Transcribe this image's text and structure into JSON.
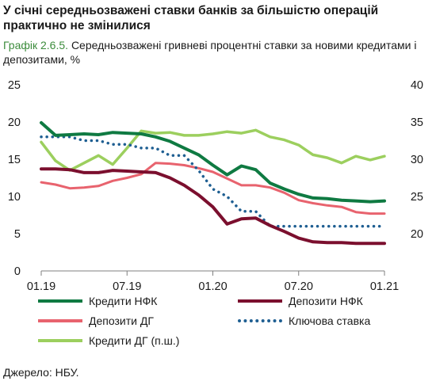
{
  "headline": "У січні середньозважені ставки банків за більшістю операцій практично не змінилися",
  "subtitle_label": "Графік 2.6.5.",
  "subtitle_text": "Середньозважені гривневі процентні ставки за новими кредитами і депозитами, %",
  "source": "Джерело: НБУ.",
  "chart_data": {
    "type": "line",
    "categories": [
      "01.19",
      "02.19",
      "03.19",
      "04.19",
      "05.19",
      "06.19",
      "07.19",
      "08.19",
      "09.19",
      "10.19",
      "11.19",
      "12.19",
      "01.20",
      "02.20",
      "03.20",
      "04.20",
      "05.20",
      "06.20",
      "07.20",
      "08.20",
      "09.20",
      "10.20",
      "11.20",
      "12.20",
      "01.21"
    ],
    "x_tick_labels": [
      "01.19",
      "07.19",
      "01.20",
      "07.20",
      "01.21"
    ],
    "x_tick_index": [
      0,
      6,
      12,
      18,
      24
    ],
    "ylim_left": [
      0,
      25
    ],
    "yticks_left": [
      0,
      5,
      10,
      15,
      20,
      25
    ],
    "ylim_right": [
      15,
      40
    ],
    "yticks_right": [
      20,
      25,
      30,
      35,
      40
    ],
    "grid": false,
    "legend_position": "bottom",
    "series": [
      {
        "name": "Кредити НФК",
        "axis": "left",
        "color": "#0f7a42",
        "style": "solid",
        "width": 4,
        "values": [
          19.9,
          18.2,
          18.3,
          18.4,
          18.3,
          18.6,
          18.5,
          18.4,
          18.0,
          17.4,
          16.5,
          15.6,
          14.2,
          12.9,
          14.1,
          13.6,
          11.8,
          11.0,
          10.3,
          9.8,
          9.7,
          9.5,
          9.4,
          9.3,
          9.4
        ]
      },
      {
        "name": "Депозити НФК",
        "axis": "left",
        "color": "#7b0f2e",
        "style": "solid",
        "width": 4,
        "values": [
          13.7,
          13.7,
          13.6,
          13.2,
          13.2,
          13.5,
          13.4,
          13.3,
          13.2,
          12.5,
          11.5,
          10.2,
          8.6,
          6.3,
          7.0,
          7.1,
          6.1,
          5.3,
          4.4,
          3.9,
          3.8,
          3.8,
          3.7,
          3.7,
          3.7
        ]
      },
      {
        "name": "Депозити ДГ",
        "axis": "left",
        "color": "#e8636e",
        "style": "solid",
        "width": 3,
        "values": [
          11.9,
          11.6,
          11.1,
          11.2,
          11.4,
          12.1,
          12.5,
          13.0,
          14.5,
          14.4,
          14.2,
          13.8,
          13.3,
          12.4,
          11.5,
          11.5,
          11.2,
          10.5,
          9.5,
          9.1,
          8.8,
          8.6,
          7.9,
          7.7,
          7.7
        ]
      },
      {
        "name": "Ключова ставка",
        "axis": "left",
        "color": "#1f5f92",
        "style": "dotted",
        "width": 3.5,
        "values": [
          18.0,
          18.0,
          18.0,
          17.5,
          17.5,
          17.0,
          17.0,
          16.5,
          16.5,
          15.5,
          15.5,
          13.5,
          11.0,
          10.0,
          8.0,
          8.0,
          6.0,
          6.0,
          6.0,
          6.0,
          6.0,
          6.0,
          6.0,
          6.0,
          6.0
        ]
      },
      {
        "name": "Кредити ДГ (п.ш.)",
        "axis": "right",
        "color": "#9ccf5e",
        "style": "solid",
        "width": 3.5,
        "values": [
          32.3,
          29.8,
          28.5,
          29.5,
          30.5,
          29.3,
          31.5,
          33.8,
          33.5,
          33.6,
          33.2,
          33.2,
          33.4,
          33.7,
          33.5,
          33.9,
          33.0,
          32.6,
          31.9,
          30.6,
          30.2,
          29.5,
          30.4,
          29.9,
          30.4
        ]
      }
    ]
  }
}
